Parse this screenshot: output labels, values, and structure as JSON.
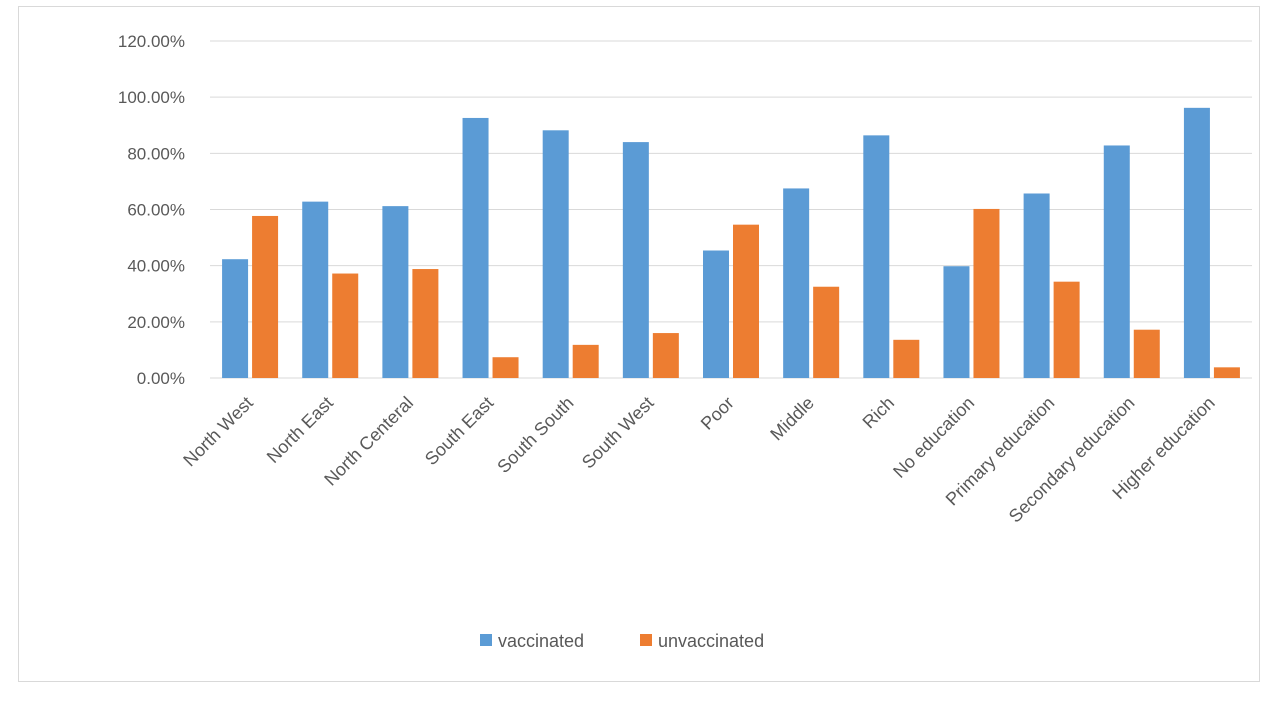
{
  "chart_data": {
    "type": "bar",
    "title": "",
    "xlabel": "",
    "ylabel": "",
    "ylim": [
      0,
      120
    ],
    "yticks": [
      "0.00%",
      "20.00%",
      "40.00%",
      "60.00%",
      "80.00%",
      "100.00%",
      "120.00%"
    ],
    "grid": true,
    "legend_position": "bottom",
    "categories": [
      "North West",
      "North East",
      "North Centeral",
      "South East",
      "South South",
      "South West",
      "Poor",
      "Middle",
      "Rich",
      "No education",
      "Primary education",
      "Secondary education",
      "Higher education"
    ],
    "series": [
      {
        "name": "vaccinated",
        "color": "#5b9bd5",
        "values": [
          42.3,
          62.8,
          61.2,
          92.6,
          88.2,
          84.0,
          45.4,
          67.5,
          86.4,
          39.8,
          65.7,
          82.8,
          96.2
        ]
      },
      {
        "name": "unvaccinated",
        "color": "#ed7d31",
        "values": [
          57.7,
          37.2,
          38.8,
          7.4,
          11.8,
          16.0,
          54.6,
          32.5,
          13.6,
          60.2,
          34.3,
          17.2,
          3.8
        ]
      }
    ]
  }
}
